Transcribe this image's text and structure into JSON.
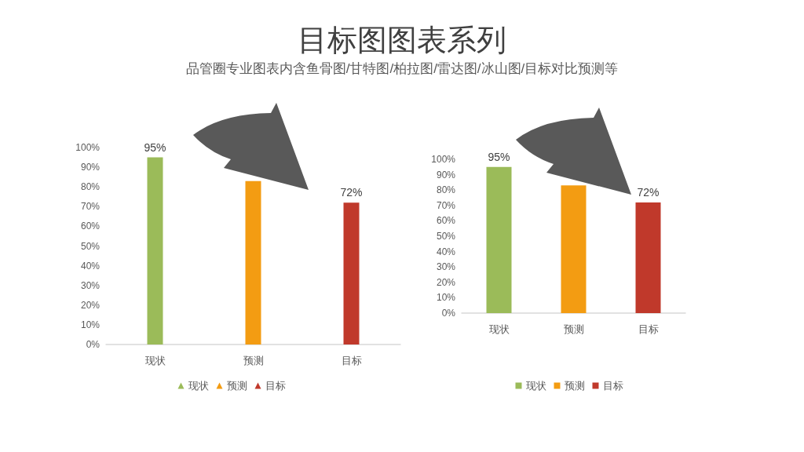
{
  "chart_data": [
    {
      "type": "bar",
      "title": "目标图图表系列",
      "subtitle": "品管圈专业图表内含鱼骨图/甘特图/柏拉图/雷达图/冰山图/目标对比预测等",
      "categories": [
        "现状",
        "预测",
        "目标"
      ],
      "series": [
        {
          "name": "现状",
          "color": "#9bbb59",
          "values": [
            95,
            null,
            null
          ],
          "value_labels": [
            "95%",
            null,
            null
          ]
        },
        {
          "name": "预测",
          "color": "#f39c12",
          "values": [
            null,
            83,
            null
          ],
          "value_labels": [
            null,
            null,
            null
          ]
        },
        {
          "name": "目标",
          "color": "#c0392b",
          "values": [
            null,
            null,
            72
          ],
          "value_labels": [
            null,
            null,
            "72%"
          ]
        }
      ],
      "ylim": [
        0,
        100
      ],
      "yticks": [
        {
          "value": 0,
          "label": "0%"
        },
        {
          "value": 10,
          "label": "10%"
        },
        {
          "value": 20,
          "label": "20%"
        },
        {
          "value": 30,
          "label": "30%"
        },
        {
          "value": 40,
          "label": "40%"
        },
        {
          "value": 50,
          "label": "50%"
        },
        {
          "value": 60,
          "label": "60%"
        },
        {
          "value": 70,
          "label": "70%"
        },
        {
          "value": 80,
          "label": "80%"
        },
        {
          "value": 90,
          "label": "90%"
        },
        {
          "value": 100,
          "label": "100%"
        }
      ],
      "marker": "triangle",
      "legend": "bottom"
    },
    {
      "type": "bar",
      "categories": [
        "现状",
        "预测",
        "目标"
      ],
      "series": [
        {
          "name": "现状",
          "color": "#9bbb59",
          "values": [
            95,
            null,
            null
          ],
          "value_labels": [
            "95%",
            null,
            null
          ]
        },
        {
          "name": "预测",
          "color": "#f39c12",
          "values": [
            null,
            83,
            null
          ],
          "value_labels": [
            null,
            null,
            null
          ]
        },
        {
          "name": "目标",
          "color": "#c0392b",
          "values": [
            null,
            null,
            72
          ],
          "value_labels": [
            null,
            null,
            "72%"
          ]
        }
      ],
      "ylim": [
        0,
        100
      ],
      "yticks": [
        {
          "value": 0,
          "label": "0%"
        },
        {
          "value": 10,
          "label": "10%"
        },
        {
          "value": 20,
          "label": "20%"
        },
        {
          "value": 30,
          "label": "30%"
        },
        {
          "value": 40,
          "label": "40%"
        },
        {
          "value": 50,
          "label": "50%"
        },
        {
          "value": 60,
          "label": "60%"
        },
        {
          "value": 70,
          "label": "70%"
        },
        {
          "value": 80,
          "label": "80%"
        },
        {
          "value": 90,
          "label": "90%"
        },
        {
          "value": 100,
          "label": "100%"
        }
      ],
      "legend": "bottom"
    }
  ]
}
